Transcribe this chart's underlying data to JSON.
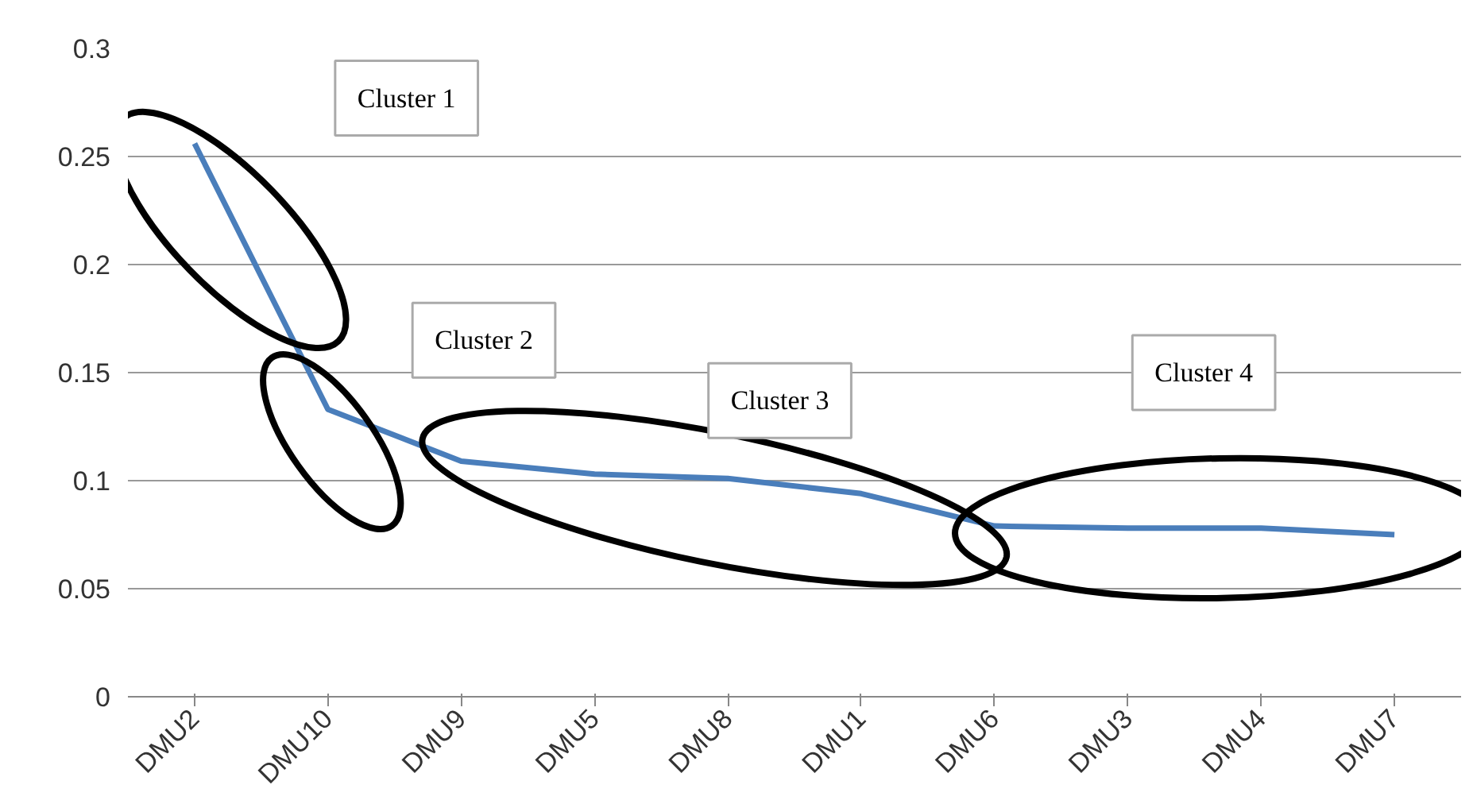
{
  "chart_data": {
    "type": "line",
    "categories": [
      "DMU2",
      "DMU10",
      "DMU9",
      "DMU5",
      "DMU8",
      "DMU1",
      "DMU6",
      "DMU3",
      "DMU4",
      "DMU7"
    ],
    "series": [
      {
        "color": "#4a7ebb",
        "values": [
          0.256,
          0.133,
          0.109,
          0.103,
          0.101,
          0.094,
          0.079,
          0.078,
          0.078,
          0.075
        ]
      }
    ],
    "ylim": [
      0,
      0.3
    ],
    "yticks": [
      0,
      0.05,
      0.1,
      0.15,
      0.2,
      0.25,
      0.3
    ],
    "grid": "y",
    "marker": "none",
    "line_style": "solid",
    "annotations": [
      "Cluster 1",
      "Cluster 2",
      "Cluster 3",
      "Cluster 4"
    ]
  }
}
